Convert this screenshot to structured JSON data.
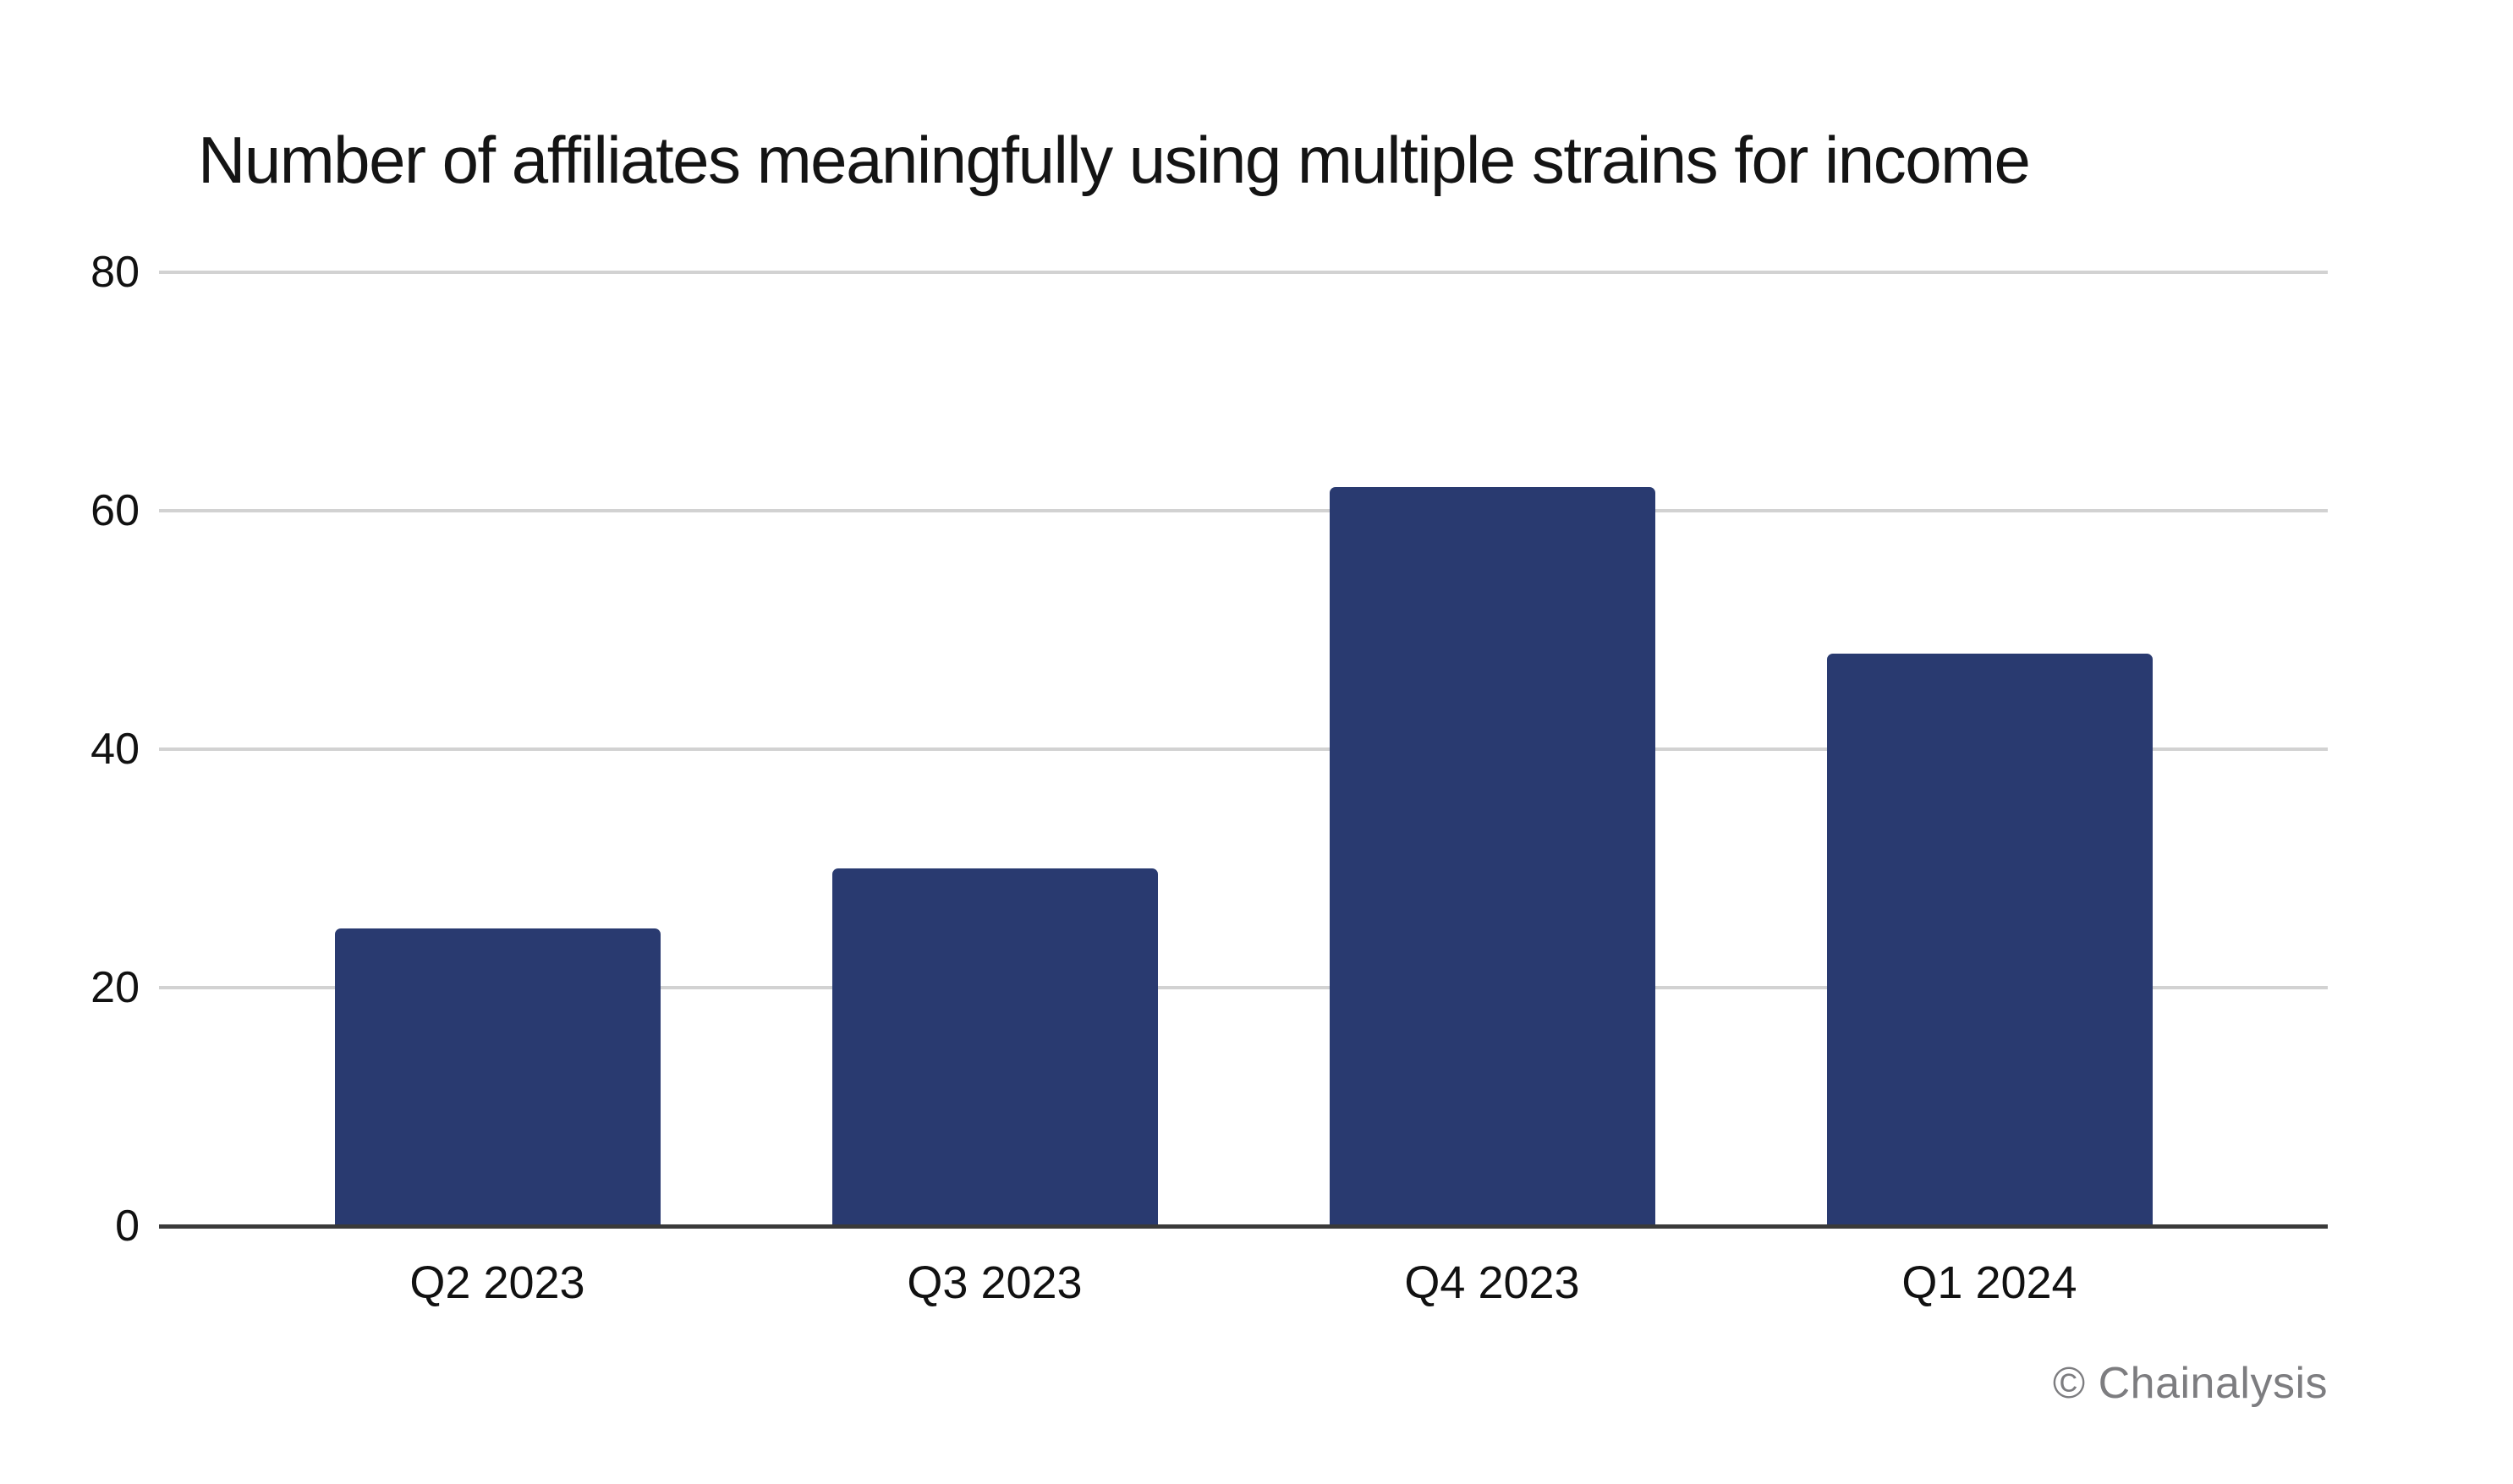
{
  "title": "Number of affiliates meaningfully using multiple strains for income",
  "watermark": "© Chainalysis",
  "colors": {
    "background": "#FFFFFF",
    "bar": "#293A70",
    "gridline": "#D2D2D2",
    "axis_line": "#3A3A3A",
    "text": "#111111",
    "watermark": "#7D7D80"
  },
  "chart_data": {
    "type": "bar",
    "title": "Number of affiliates meaningfully using multiple strains for income",
    "categories": [
      "Q2 2023",
      "Q3 2023",
      "Q4 2023",
      "Q1 2024"
    ],
    "values": [
      25,
      30,
      62,
      48
    ],
    "xlabel": "",
    "ylabel": "",
    "ylim": [
      0,
      80
    ],
    "yticks": [
      0,
      20,
      40,
      60,
      80
    ],
    "grid": "horizontal",
    "legend": "none",
    "bar_color": "#293A70"
  }
}
